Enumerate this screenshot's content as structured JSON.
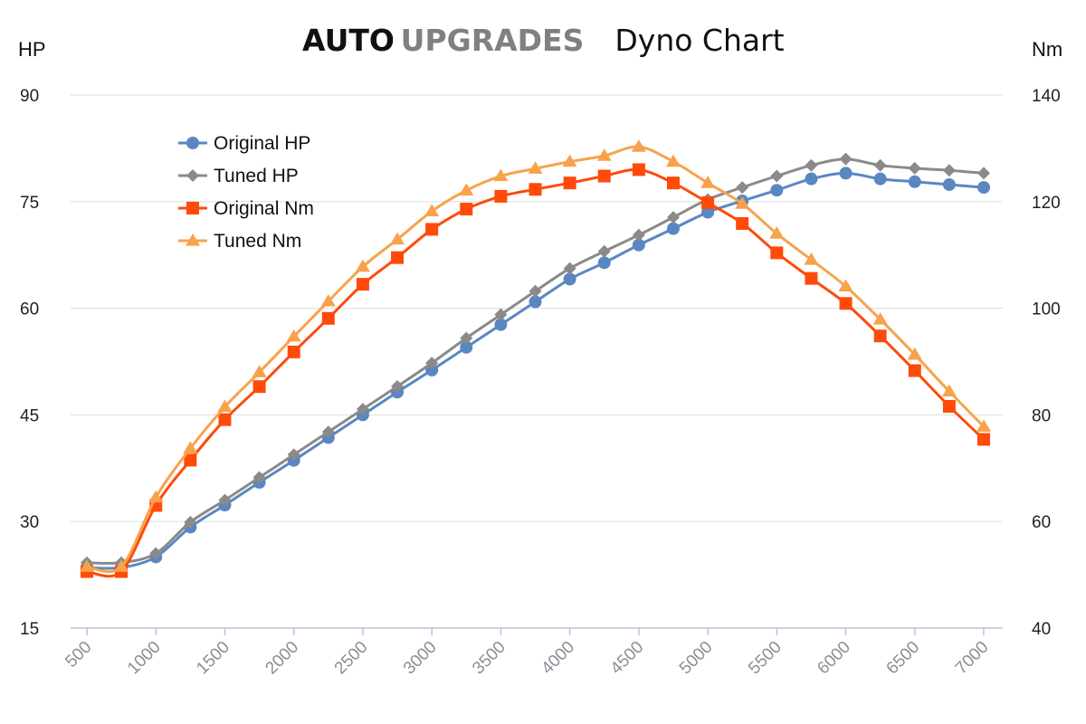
{
  "header": {
    "brand_auto": "AUTO",
    "brand_upgrades": "UPGRADES",
    "title": "Dyno Chart"
  },
  "colors": {
    "brand_auto": "#111111",
    "brand_upgrades": "#808080",
    "grid": "#d9dde3",
    "axis": "#b8c4d6",
    "original_hp": "#5a87c2",
    "tuned_hp": "#8a8a8a",
    "original_nm": "#ff4a0a",
    "tuned_nm": "#f8a24c"
  },
  "chart_data": {
    "type": "line",
    "title": "Dyno Chart",
    "y_left_label": "HP",
    "y_right_label": "Nm",
    "y_left_lim": [
      15,
      90
    ],
    "y_left_ticks": [
      "15",
      "30",
      "45",
      "60",
      "75",
      "90"
    ],
    "y_right_lim": [
      40,
      140
    ],
    "y_right_ticks": [
      "40",
      "60",
      "80",
      "100",
      "120",
      "140"
    ],
    "x_ticks": [
      "500",
      "1000",
      "1500",
      "2000",
      "2500",
      "3000",
      "3500",
      "4000",
      "4500",
      "5000",
      "5500",
      "6000",
      "6500",
      "7000"
    ],
    "x": [
      500,
      750,
      1000,
      1250,
      1500,
      1750,
      2000,
      2250,
      2500,
      2750,
      3000,
      3250,
      3500,
      3750,
      4000,
      4250,
      4500,
      4750,
      5000,
      5250,
      5500,
      5750,
      6000,
      6250,
      6500,
      6750,
      7000
    ],
    "grid": true,
    "legend_position": "top-left",
    "series": [
      {
        "name": "Original HP",
        "axis": "left",
        "marker": "circle",
        "color": "#5a87c2",
        "values": [
          23.5,
          23.5,
          25.0,
          29.2,
          32.3,
          35.5,
          38.6,
          41.8,
          45.0,
          48.2,
          51.3,
          54.5,
          57.7,
          60.9,
          64.1,
          66.4,
          68.9,
          71.2,
          73.5,
          75.1,
          76.6,
          78.2,
          79.0,
          78.2,
          77.8,
          77.4,
          77.0
        ]
      },
      {
        "name": "Tuned HP",
        "axis": "left",
        "marker": "diamond",
        "color": "#8a8a8a",
        "values": [
          24.2,
          24.2,
          25.5,
          29.9,
          33.0,
          36.2,
          39.4,
          42.6,
          45.8,
          49.0,
          52.3,
          55.8,
          59.1,
          62.4,
          65.6,
          68.0,
          70.3,
          72.8,
          75.3,
          77.0,
          78.6,
          80.1,
          81.0,
          80.1,
          79.7,
          79.4,
          79.0
        ]
      },
      {
        "name": "Original Nm",
        "axis": "right",
        "marker": "square",
        "color": "#ff4a0a",
        "values": [
          50.6,
          50.6,
          63.0,
          71.5,
          79.1,
          85.3,
          91.8,
          98.1,
          104.5,
          109.5,
          114.8,
          118.6,
          121.0,
          122.3,
          123.5,
          124.8,
          126.0,
          123.5,
          119.8,
          115.9,
          110.4,
          105.6,
          100.9,
          94.8,
          88.3,
          81.6,
          75.4
        ]
      },
      {
        "name": "Tuned Nm",
        "axis": "right",
        "marker": "triangle",
        "color": "#f8a24c",
        "values": [
          51.5,
          51.5,
          64.5,
          73.7,
          81.5,
          88.0,
          94.7,
          101.3,
          107.8,
          112.9,
          118.2,
          122.1,
          124.8,
          126.2,
          127.5,
          128.6,
          130.3,
          127.5,
          123.5,
          119.6,
          114.0,
          109.1,
          104.1,
          97.9,
          91.3,
          84.4,
          77.8
        ]
      }
    ]
  }
}
